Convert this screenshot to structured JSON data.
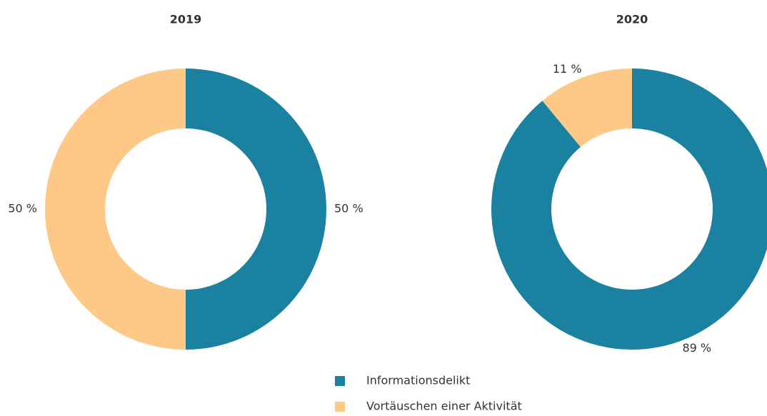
{
  "chart_data": [
    {
      "type": "donut",
      "title": "2019",
      "categories": [
        "Informationsdelikt",
        "Vortäuschen einer Aktivität"
      ],
      "values": [
        50,
        50
      ],
      "value_labels": [
        "50 %",
        "50 %"
      ],
      "colors": [
        "#1a82a0",
        "#fec987"
      ]
    },
    {
      "type": "donut",
      "title": "2020",
      "categories": [
        "Informationsdelikt",
        "Vortäuschen einer Aktivität"
      ],
      "values": [
        89,
        11
      ],
      "value_labels": [
        "89 %",
        "11 %"
      ],
      "colors": [
        "#1a82a0",
        "#fec987"
      ]
    }
  ]
}
